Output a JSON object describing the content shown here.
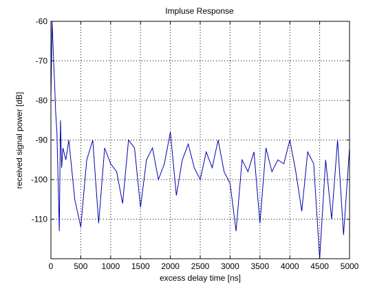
{
  "chart_data": {
    "type": "line",
    "title": "Impluse Response",
    "xlabel": "excess delay time [ns]",
    "ylabel": "received signal power [dB]",
    "xlim": [
      0,
      5000
    ],
    "ylim": [
      -120,
      -60
    ],
    "xticks": [
      0,
      500,
      1000,
      1500,
      2000,
      2500,
      3000,
      3500,
      4000,
      4500,
      5000
    ],
    "yticks": [
      -60,
      -70,
      -80,
      -90,
      -100,
      -110
    ],
    "grid": true,
    "grid_style": "dotted",
    "line_color": "#0000aa",
    "series": [
      {
        "x": [
          0,
          20,
          40,
          60,
          80,
          100,
          120,
          140,
          160,
          180,
          200,
          250,
          300,
          400,
          500,
          600,
          700,
          800,
          900,
          1000,
          1100,
          1200,
          1300,
          1400,
          1500,
          1600,
          1700,
          1800,
          1900,
          2000,
          2100,
          2200,
          2300,
          2400,
          2500,
          2600,
          2700,
          2800,
          2900,
          3000,
          3100,
          3200,
          3300,
          3400,
          3500,
          3600,
          3700,
          3800,
          3900,
          4000,
          4100,
          4200,
          4300,
          4400,
          4500,
          4600,
          4700,
          4800,
          4900,
          5000
        ],
        "y": [
          -80,
          -60,
          -68,
          -75,
          -83,
          -88,
          -100,
          -113,
          -85,
          -97,
          -92,
          -95,
          -90,
          -105,
          -112,
          -95,
          -90,
          -111,
          -92,
          -96,
          -98,
          -106,
          -90,
          -92,
          -107,
          -95,
          -92,
          -100,
          -96,
          -88,
          -104,
          -95,
          -91,
          -97,
          -100,
          -93,
          -97,
          -90,
          -98,
          -101,
          -113,
          -95,
          -98,
          -93,
          -111,
          -92,
          -98,
          -95,
          -96,
          -90,
          -98,
          -108,
          -93,
          -96,
          -120,
          -95,
          -110,
          -90,
          -114,
          -92
        ]
      }
    ]
  }
}
